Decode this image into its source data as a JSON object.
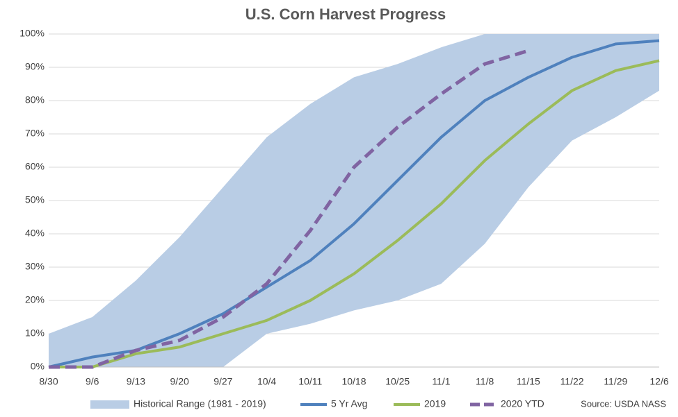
{
  "chart_data": {
    "type": "line",
    "title": "U.S. Corn Harvest Progress",
    "source": "Source: USDA NASS",
    "categories": [
      "8/30",
      "9/6",
      "9/13",
      "9/20",
      "9/27",
      "10/4",
      "10/11",
      "10/18",
      "10/25",
      "11/1",
      "11/8",
      "11/15",
      "11/22",
      "11/29",
      "12/6"
    ],
    "range": {
      "name": "Historical Range (1981 - 2019)",
      "color": "#b9cde5",
      "upper": [
        10,
        15,
        26,
        39,
        54,
        69,
        79,
        87,
        91,
        96,
        100,
        100,
        100,
        100,
        100
      ],
      "lower": [
        0,
        0,
        0,
        0,
        0,
        10,
        13,
        17,
        20,
        25,
        37,
        54,
        68,
        75,
        83
      ]
    },
    "series": [
      {
        "name": "5 Yr Avg",
        "color": "#4f81bd",
        "values": [
          0,
          3,
          5,
          10,
          16,
          24,
          32,
          43,
          56,
          69,
          80,
          87,
          93,
          97,
          98
        ]
      },
      {
        "name": "2019",
        "color": "#9bbb59",
        "values": [
          0,
          0,
          4,
          6,
          10,
          14,
          20,
          28,
          38,
          49,
          62,
          73,
          83,
          89,
          92
        ]
      },
      {
        "name": "2020 YTD",
        "color": "#8064a2",
        "dashed": true,
        "values": [
          0,
          0,
          5,
          8,
          15,
          25,
          41,
          60,
          72,
          82,
          91,
          95,
          null,
          null,
          null
        ]
      }
    ],
    "ylim": [
      0,
      100
    ],
    "yticks": [
      {
        "value": 0,
        "label": "0%"
      },
      {
        "value": 10,
        "label": "10%"
      },
      {
        "value": 20,
        "label": "20%"
      },
      {
        "value": 30,
        "label": "30%"
      },
      {
        "value": 40,
        "label": "40%"
      },
      {
        "value": 50,
        "label": "50%"
      },
      {
        "value": 60,
        "label": "60%"
      },
      {
        "value": 70,
        "label": "70%"
      },
      {
        "value": 80,
        "label": "80%"
      },
      {
        "value": 90,
        "label": "90%"
      },
      {
        "value": 100,
        "label": "100%"
      }
    ],
    "grid": true
  }
}
